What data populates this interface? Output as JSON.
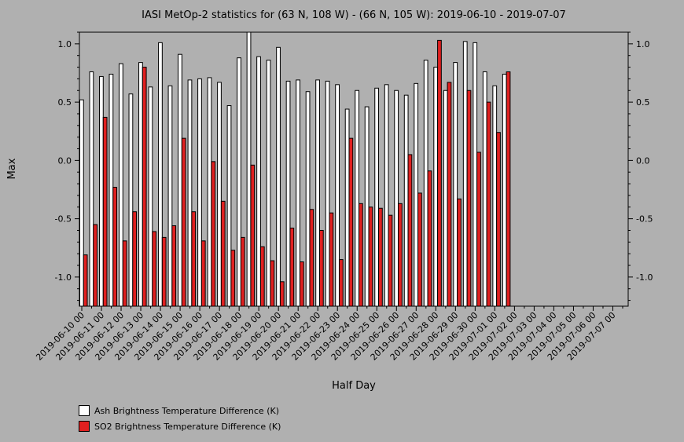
{
  "chart_data": {
    "type": "bar",
    "title": "IASI MetOp-2 statistics for (63 N, 108 W) - (66 N, 105 W): 2019-06-10 - 2019-07-07",
    "xlabel": "Half Day",
    "ylabel": "Max",
    "ylim": [
      -1.25,
      1.1
    ],
    "yticks": [
      -1.0,
      -0.5,
      0.0,
      0.5,
      1.0
    ],
    "ytick_labels": [
      "-1.0",
      "-0.5",
      "0.0",
      "0.5",
      "1.0"
    ],
    "xticks": [
      "2019-06-10 00",
      "2019-06-11 00",
      "2019-06-12 00",
      "2019-06-13 00",
      "2019-06-14 00",
      "2019-06-15 00",
      "2019-06-16 00",
      "2019-06-17 00",
      "2019-06-18 00",
      "2019-06-19 00",
      "2019-06-20 00",
      "2019-06-21 00",
      "2019-06-22 00",
      "2019-06-23 00",
      "2019-06-24 00",
      "2019-06-25 00",
      "2019-06-26 00",
      "2019-06-27 00",
      "2019-06-28 00",
      "2019-06-29 00",
      "2019-06-30 00",
      "2019-07-01 00",
      "2019-07-02 00",
      "2019-07-03 00",
      "2019-07-04 00",
      "2019-07-05 00",
      "2019-07-06 00",
      "2019-07-07 00"
    ],
    "series": [
      {
        "name": "Ash Brightness Temperature Difference (K)",
        "color": "#ffffff",
        "values": [
          0.52,
          0.76,
          0.72,
          0.74,
          0.83,
          0.57,
          0.84,
          0.63,
          1.01,
          0.64,
          0.91,
          0.69,
          0.7,
          0.71,
          0.67,
          0.47,
          0.88,
          1.1,
          0.89,
          0.86,
          0.97,
          0.68,
          0.69,
          0.59,
          0.69,
          0.68,
          0.65,
          0.44,
          0.6,
          0.46,
          0.62,
          0.65,
          0.6,
          0.56,
          0.66,
          0.86,
          0.8,
          0.6,
          0.84,
          1.02,
          1.01,
          0.76,
          0.64,
          0.74
        ]
      },
      {
        "name": "SO2 Brightness Temperature Difference (K)",
        "color": "#e02020",
        "values": [
          -0.81,
          -0.55,
          0.37,
          -0.23,
          -0.69,
          -0.44,
          0.8,
          -0.61,
          -0.66,
          -0.56,
          0.19,
          -0.44,
          -0.69,
          -0.01,
          -0.35,
          -0.77,
          -0.66,
          -0.04,
          -0.74,
          -0.86,
          -1.04,
          -0.58,
          -0.87,
          -0.42,
          -0.6,
          -0.45,
          -0.85,
          0.19,
          -0.37,
          -0.4,
          -0.41,
          -0.47,
          -0.37,
          0.05,
          -0.28,
          -0.09,
          1.03,
          0.67,
          -0.33,
          0.6,
          0.07,
          0.5,
          0.24,
          0.76
        ]
      }
    ],
    "legend_position": "bottom-left",
    "grid": false
  }
}
